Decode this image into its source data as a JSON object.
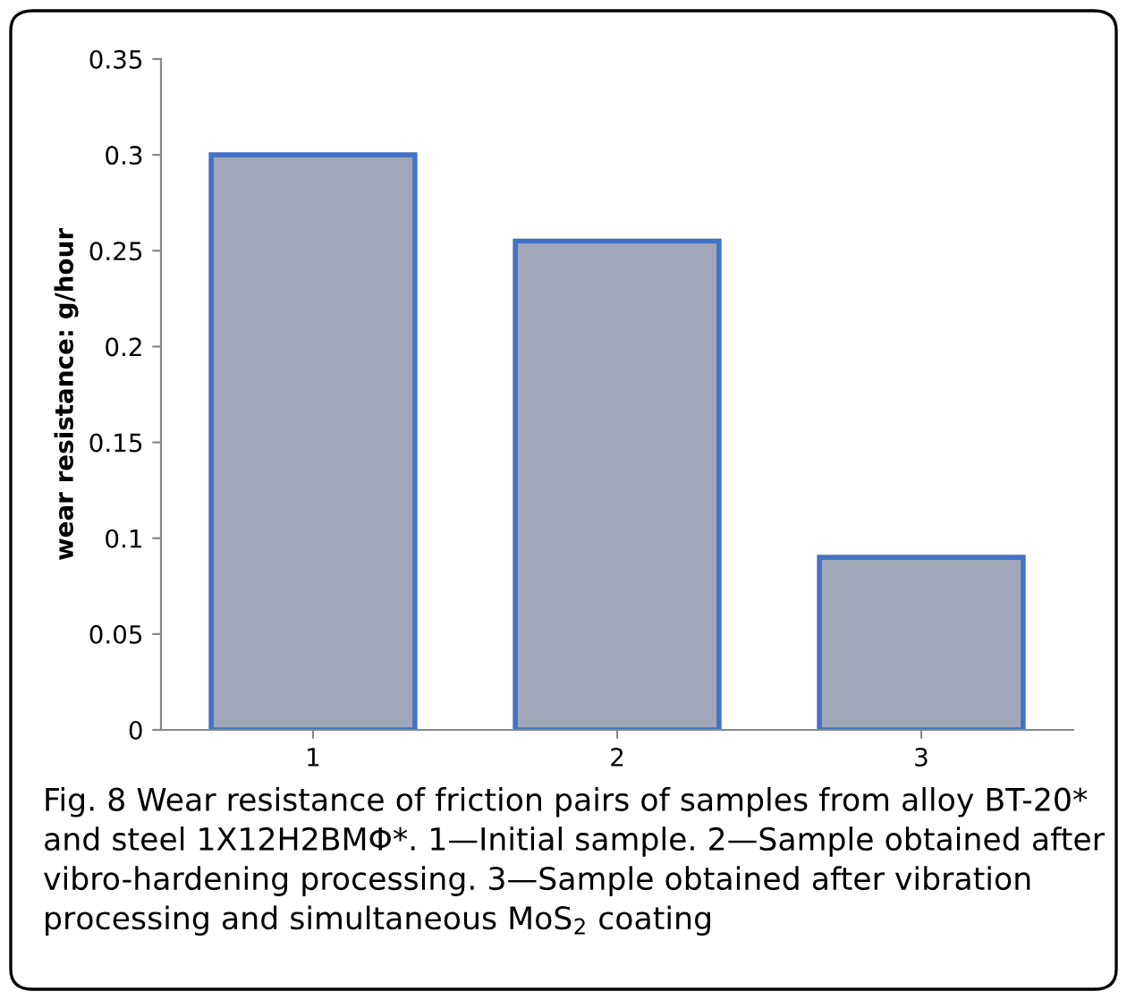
{
  "chart_data": {
    "type": "bar",
    "ylabel": "wear resistance: g/hour",
    "categories": [
      "1",
      "2",
      "3"
    ],
    "values": [
      0.3,
      0.255,
      0.09
    ],
    "color": "#a0a7b8",
    "ylim": [
      0,
      0.35
    ],
    "yticks": [
      0,
      0.05,
      0.1,
      0.15,
      0.2,
      0.25,
      0.3,
      0.35
    ],
    "grid": false,
    "annotations": [
      "Fig. 8 Wear resistance of friction pairs of samples from alloy BT-20* and steel 1X12H2BMΦ*. 1—Initial sample. 2—Sample obtained after vibro-hardening processing. 3—Sample obtained after vibration processing and simultaneous MoS$_{2}$ coating"
    ]
  }
}
